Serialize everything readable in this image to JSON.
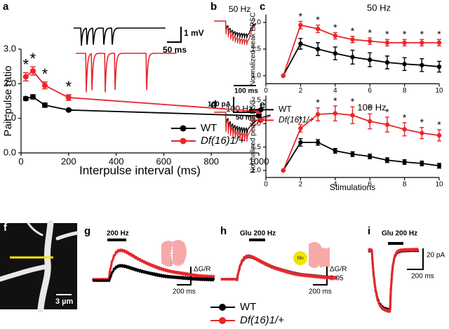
{
  "chart_data": [
    {
      "type": "line",
      "xlabel": "Interpulse interval (ms)",
      "ylabel": "Pair-pulse ratio",
      "x": [
        20,
        50,
        100,
        200,
        1000
      ],
      "series": [
        {
          "name": "WT",
          "color": "#000000",
          "values": [
            1.57,
            1.62,
            1.38,
            1.24,
            1.07
          ],
          "errors": [
            0.05,
            0.06,
            0.06,
            0.03,
            0.04
          ]
        },
        {
          "name": "Df(16)1/+",
          "color": "#e8262a",
          "values": [
            2.2,
            2.37,
            1.95,
            1.6,
            1.2
          ],
          "errors": [
            0.12,
            0.12,
            0.1,
            0.08,
            0.06
          ],
          "marks": [
            "*",
            "*",
            "*",
            "*",
            null
          ]
        }
      ],
      "xlim": [
        0,
        1000
      ],
      "xticks": [
        0,
        200,
        400,
        600,
        800,
        1000
      ],
      "ylim": [
        0,
        3
      ],
      "yticks": [
        {
          "value": 0,
          "label": "0.0"
        },
        {
          "value": 1,
          "label": "1.0"
        },
        {
          "value": 2,
          "label": "2.0"
        },
        {
          "value": 3,
          "label": "3.0"
        }
      ],
      "legend": "lower right"
    },
    {
      "type": "line",
      "title": "50 Hz",
      "ylabel": "Normalized peak EPSC",
      "x": [
        1,
        2,
        3,
        4,
        5,
        6,
        7,
        8,
        9,
        10
      ],
      "series": [
        {
          "name": "WT",
          "color": "#000000",
          "values": [
            1.0,
            1.6,
            1.5,
            1.42,
            1.35,
            1.3,
            1.25,
            1.22,
            1.2,
            1.17
          ],
          "errors": [
            0,
            0.1,
            0.12,
            0.12,
            0.13,
            0.13,
            0.12,
            0.12,
            0.12,
            0.1
          ]
        },
        {
          "name": "Df(16)1/+",
          "color": "#e8262a",
          "values": [
            1.0,
            1.95,
            1.88,
            1.75,
            1.68,
            1.65,
            1.62,
            1.62,
            1.62,
            1.62
          ],
          "errors": [
            0,
            0.07,
            0.07,
            0.06,
            0.06,
            0.06,
            0.06,
            0.06,
            0.06,
            0.06
          ],
          "marks": [
            null,
            "*",
            "*",
            "*",
            "*",
            "*",
            "*",
            "*",
            "*",
            "*"
          ]
        }
      ],
      "xlim": [
        0,
        10
      ],
      "xticks": [
        0,
        2,
        4,
        6,
        8,
        10
      ],
      "ylim": [
        0.85,
        2.15
      ],
      "yticks": [
        {
          "value": 1,
          "label": "1.0"
        },
        {
          "value": 1.5,
          "label": "1.5"
        },
        {
          "value": 2,
          "label": "2.0"
        }
      ],
      "legend": "below"
    },
    {
      "type": "line",
      "title": "100 Hz",
      "xlabel": "Stimulations",
      "ylabel": "Normalized peak EPSC",
      "x": [
        1,
        2,
        3,
        4,
        5,
        6,
        7,
        8,
        9,
        10
      ],
      "series": [
        {
          "color": "#000000",
          "values": [
            1.0,
            1.6,
            1.6,
            1.42,
            1.35,
            1.3,
            1.22,
            1.18,
            1.15,
            1.1
          ],
          "errors": [
            0,
            0.08,
            0.06,
            0.05,
            0.05,
            0.05,
            0.05,
            0.05,
            0.05,
            0.05
          ]
        },
        {
          "color": "#e8262a",
          "values": [
            1.0,
            1.9,
            2.2,
            2.22,
            2.18,
            2.05,
            1.98,
            1.88,
            1.8,
            1.75
          ],
          "errors": [
            0,
            0.08,
            0.14,
            0.16,
            0.18,
            0.16,
            0.16,
            0.14,
            0.12,
            0.12
          ],
          "marks": [
            null,
            "*",
            "*",
            "*",
            "*",
            "*",
            "*",
            "*",
            "*",
            "*"
          ]
        }
      ],
      "xlim": [
        0,
        10
      ],
      "xticks": [
        0,
        2,
        4,
        6,
        8,
        10
      ],
      "ylim": [
        0.85,
        2.6
      ],
      "yticks": [
        {
          "value": 1,
          "label": "1.0"
        },
        {
          "value": 1.5,
          "label": "1.5"
        },
        {
          "value": 2,
          "label": "2.0"
        },
        {
          "value": 2.5,
          "label": "2.5"
        }
      ]
    }
  ],
  "panels": {
    "labels": [
      "a",
      "b",
      "c",
      "d",
      "e",
      "f",
      "g",
      "h",
      "i"
    ],
    "a_inset": {
      "scale_y": "1 mV",
      "scale_x": "50 ms"
    },
    "b": {
      "title": "50 Hz",
      "scale_x1": "100 ms",
      "scale_y": "100 pA",
      "scale_x2": "50 ms"
    },
    "d": {
      "title": "100 Hz"
    },
    "f": {
      "scale": "3 µm"
    },
    "g": {
      "stim": "200 Hz",
      "scale_y_symbol": "ΔG/R",
      "scale_y": "0.05",
      "scale_x": "200 ms"
    },
    "h": {
      "stim": "Glu 200 Hz",
      "icon": "Glu",
      "scale_y_symbol": "ΔG/R",
      "scale_y": "0.05",
      "scale_x": "200 ms"
    },
    "i": {
      "stim": "Glu 200 Hz",
      "scale_y": "20 pA",
      "scale_x": "200 ms"
    },
    "legend": [
      "WT",
      "Df(16)1/+"
    ]
  }
}
